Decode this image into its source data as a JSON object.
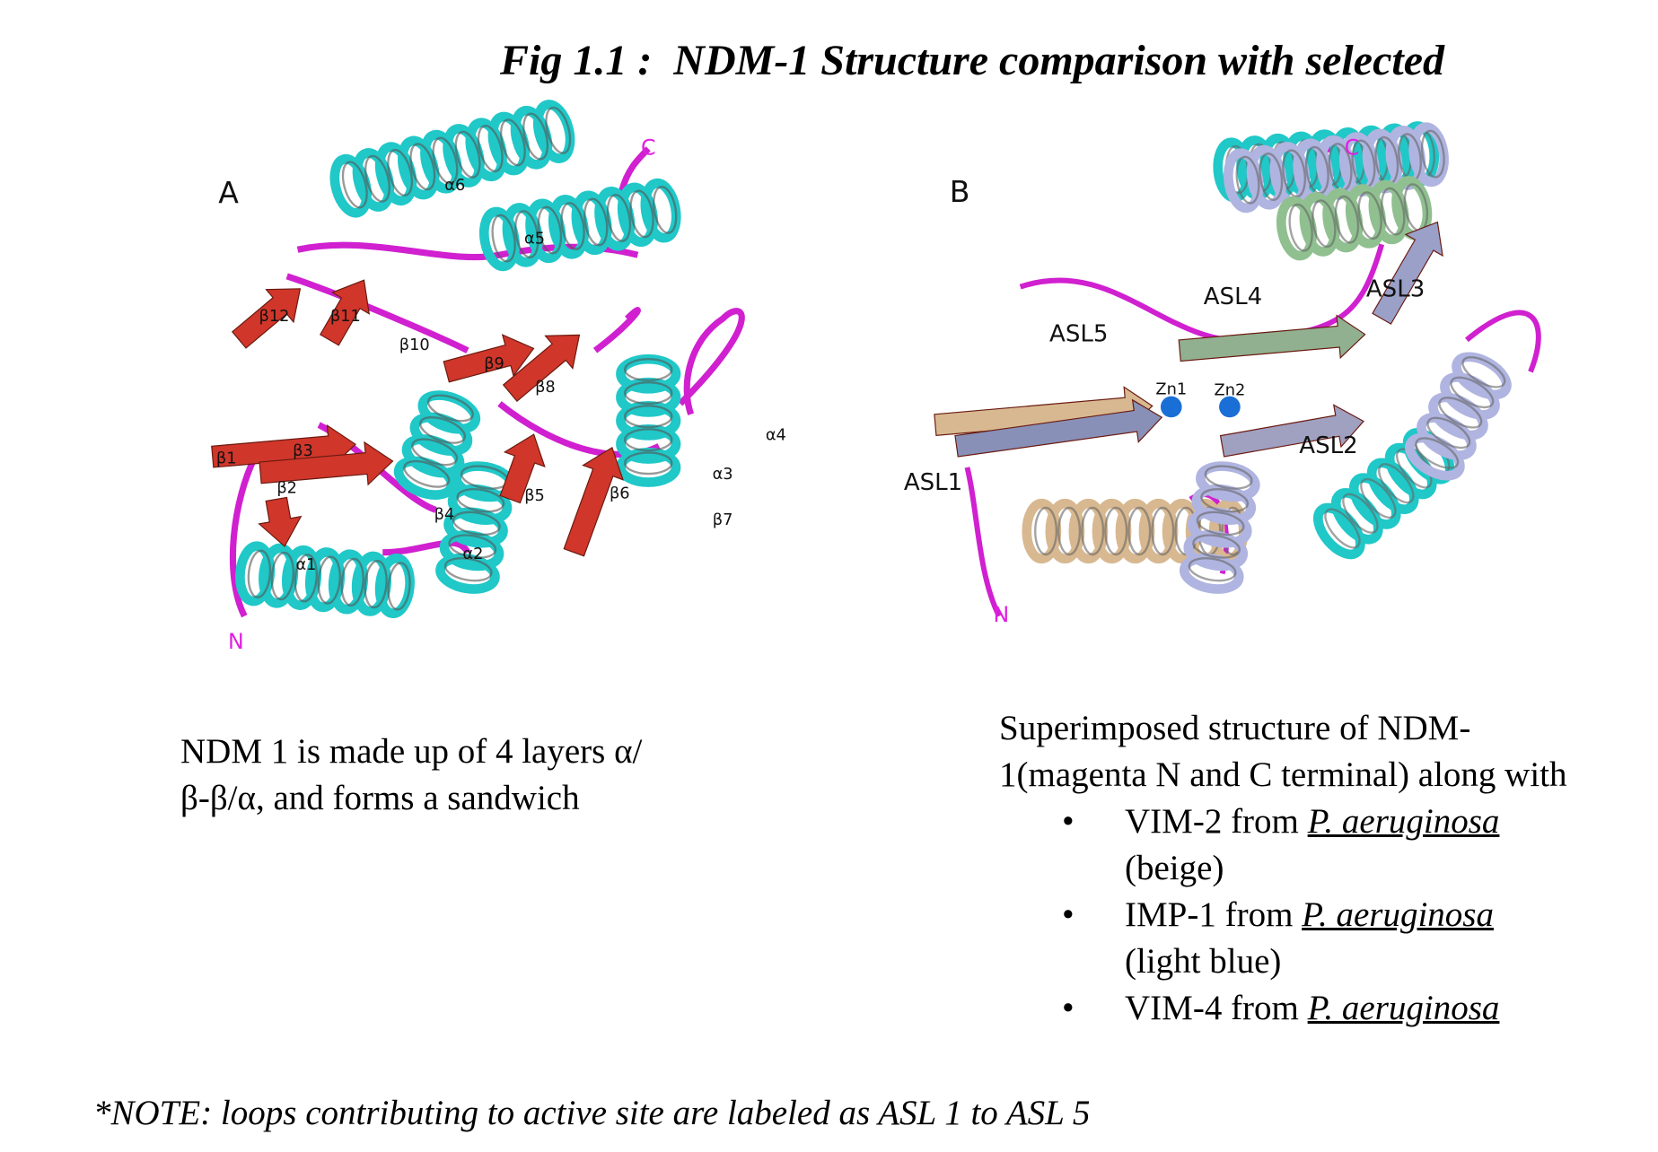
{
  "title": "Fig 1.1 :  NDM-1 Structure comparison with selected",
  "panel_a": {
    "labels": [
      "A",
      "C",
      "α6",
      "α5",
      "β12",
      "β11",
      "β10",
      "β9",
      "β8",
      "α4",
      "β1",
      "β3",
      "β2",
      "β4",
      "β5",
      "β6",
      "α3",
      "β7",
      "α1",
      "α2",
      "N"
    ]
  },
  "panel_b": {
    "labels": [
      "B",
      "C",
      "ASL4",
      "ASL3",
      "ASL5",
      "Zn1",
      "Zn2",
      "ASL2",
      "ASL1",
      "N"
    ]
  },
  "caption_a": "NDM 1 is made up of 4 layers α/β-β/α, and forms a sandwich",
  "caption_b": {
    "intro": "Superimposed structure of NDM-1(magenta N and C terminal) along with",
    "items": [
      {
        "name": "VIM-2 from ",
        "organism": "P. aeruginosa",
        "color": "(beige)"
      },
      {
        "name": "IMP-1 from ",
        "organism": "P. aeruginosa",
        "color": "(light blue)"
      },
      {
        "name": "VIM-4 from ",
        "organism": "P. aeruginosa"
      }
    ]
  },
  "note": "*NOTE: loops contributing to active site are labeled as ASL 1 to ASL 5"
}
